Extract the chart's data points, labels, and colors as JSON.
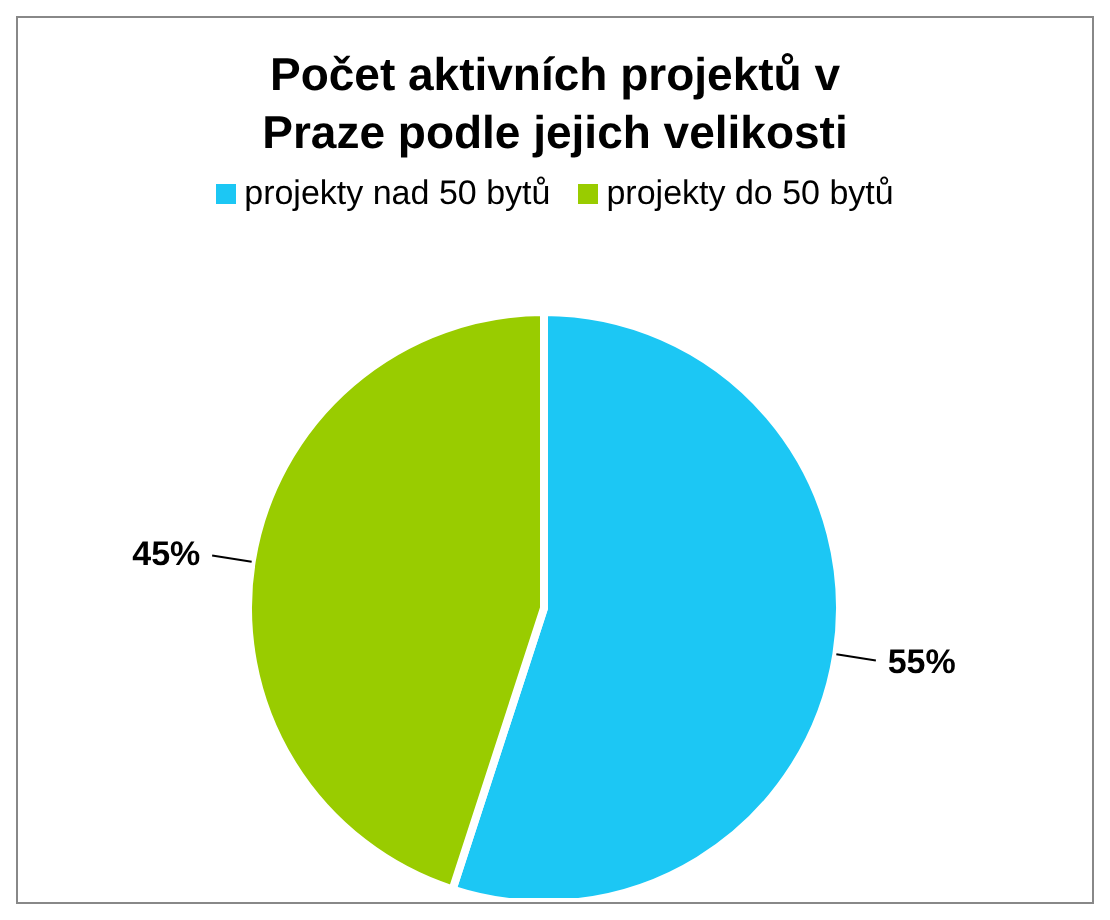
{
  "chart_data": {
    "type": "pie",
    "title": "Počet aktivních projektů v Praze podle jejich velikosti",
    "categories": [
      "projekty nad 50 bytů",
      "projekty do 50 bytů"
    ],
    "values": [
      55,
      45
    ],
    "colors": [
      "#1cc7f4",
      "#99cc00"
    ],
    "value_labels": [
      "55%",
      "45%"
    ],
    "legend": "top"
  }
}
